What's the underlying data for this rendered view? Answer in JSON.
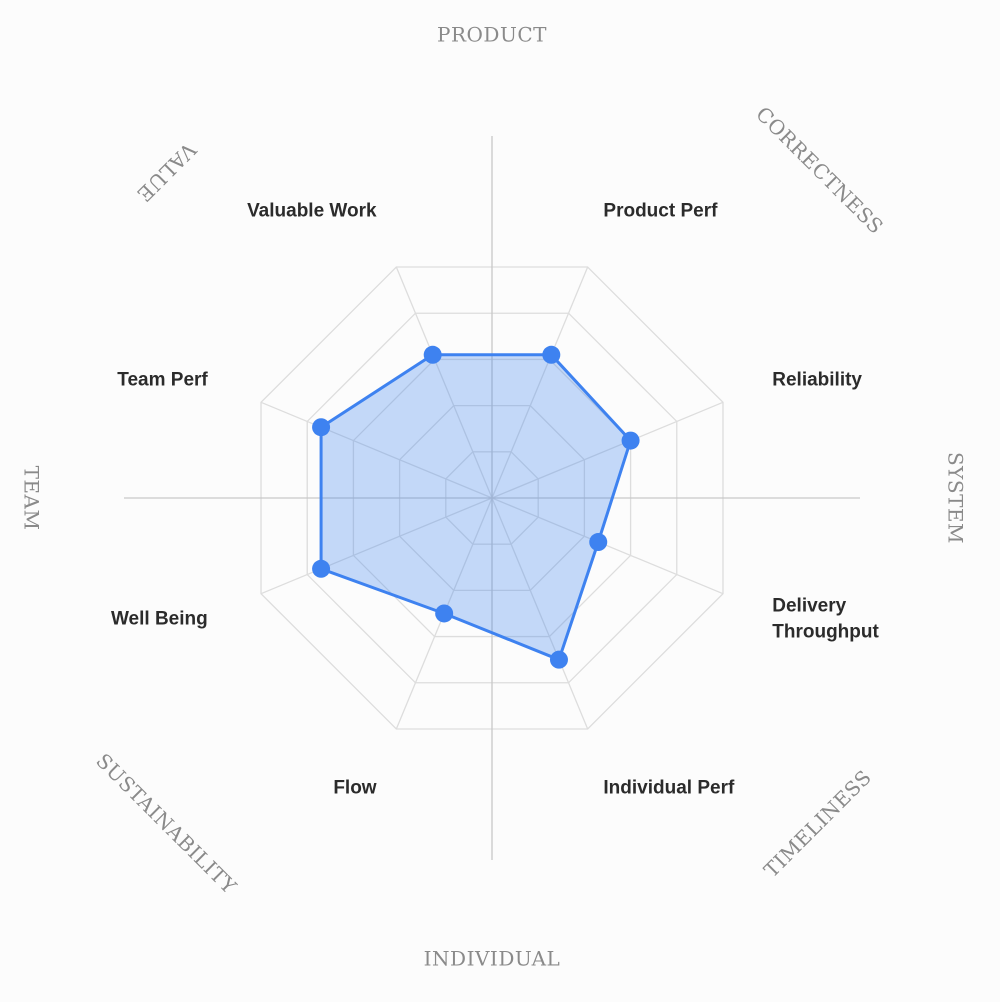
{
  "chart_data": {
    "type": "radar",
    "scale_max": 10,
    "grid_levels": 5,
    "axes": [
      {
        "label": "Product Perf",
        "lines": [
          "Product Perf"
        ],
        "value": 6.2
      },
      {
        "label": "Reliability",
        "lines": [
          "Reliability"
        ],
        "value": 6.0
      },
      {
        "label": "Delivery Throughput",
        "lines": [
          "Delivery",
          "Throughput"
        ],
        "value": 4.6
      },
      {
        "label": "Individual Perf",
        "lines": [
          "Individual Perf"
        ],
        "value": 7.0
      },
      {
        "label": "Flow",
        "lines": [
          "Flow"
        ],
        "value": 5.0
      },
      {
        "label": "Well Being",
        "lines": [
          "Well Being"
        ],
        "value": 7.4
      },
      {
        "label": "Team Perf",
        "lines": [
          "Team Perf"
        ],
        "value": 7.4
      },
      {
        "label": "Valuable Work",
        "lines": [
          "Valuable Work"
        ],
        "value": 6.2
      }
    ],
    "dimensions": [
      "PRODUCT",
      "CORRECTNESS",
      "SYSTEM",
      "TIMELINESS",
      "INDIVIDUAL",
      "SUSTAINABILITY",
      "TEAM",
      "VALUE"
    ],
    "colors": {
      "series": "#3e82f0",
      "fill": "rgba(64, 132, 238, 0.30)",
      "grid": "#dddddd",
      "axis": "#c8c8c8",
      "metric_text": "#2b2b2b",
      "dimension_text": "#8a8a8a"
    }
  }
}
